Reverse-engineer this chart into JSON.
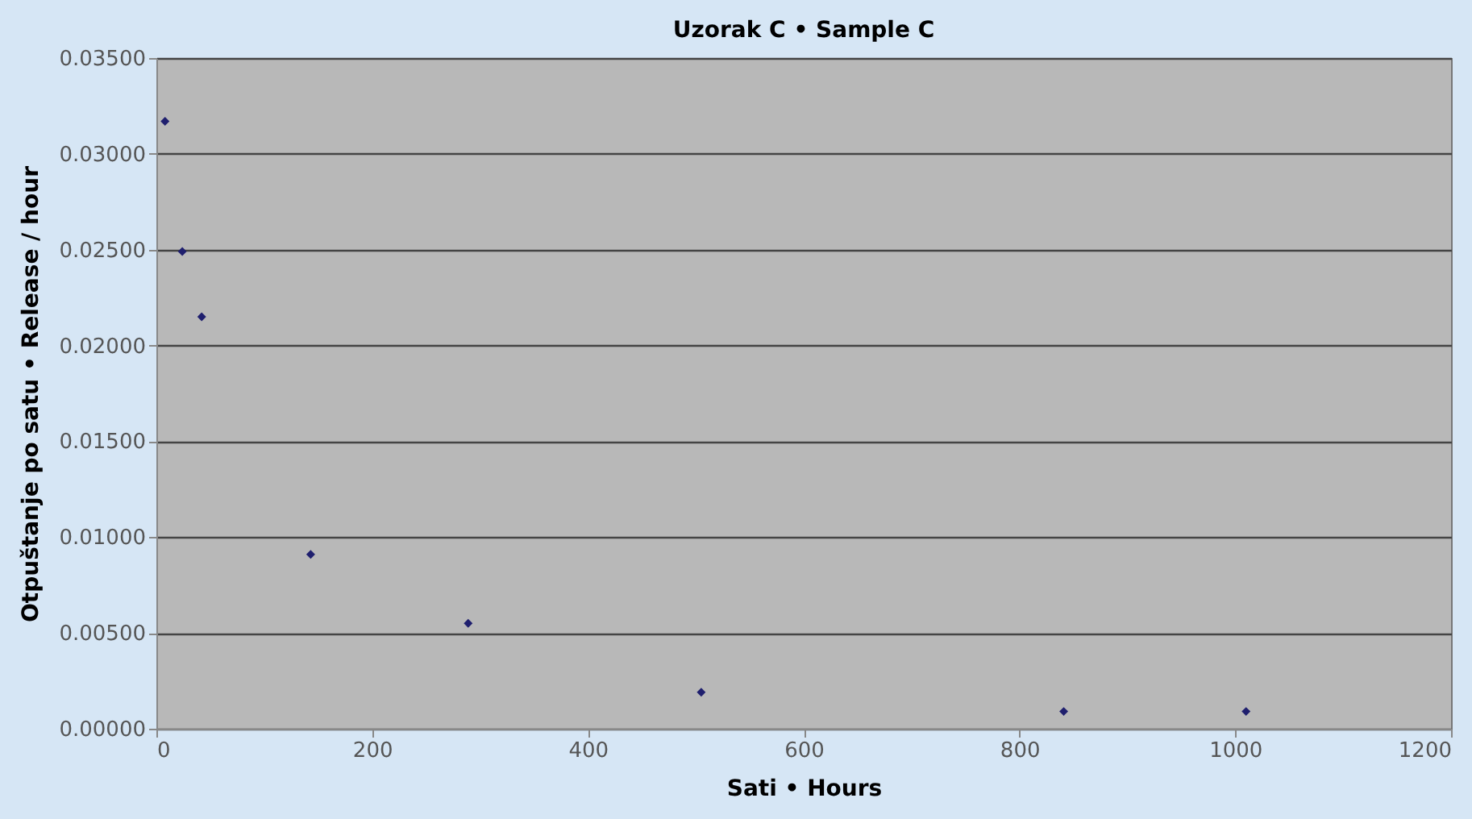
{
  "chart_data": {
    "type": "scatter",
    "title": "Uzorak C • Sample C",
    "xlabel": "Sati • Hours",
    "ylabel": "Otpuštanje po satu • Release / hour",
    "x": [
      8,
      24,
      42,
      143,
      289,
      505,
      841,
      1010
    ],
    "series": [
      {
        "color": "#1f1f6e",
        "values": [
          0.0317,
          0.0249,
          0.0215,
          0.0091,
          0.0055,
          0.0019,
          0.0009,
          0.0009
        ]
      }
    ],
    "xlim": [
      0,
      1200
    ],
    "xticks": [
      0,
      200,
      400,
      600,
      800,
      1000,
      1200
    ],
    "ylim": [
      0,
      0.035
    ],
    "yticks": [
      {
        "value": 0,
        "label": "0.00000"
      },
      {
        "value": 0.005,
        "label": "0.00500"
      },
      {
        "value": 0.01,
        "label": "0.01000"
      },
      {
        "value": 0.015,
        "label": "0.01500"
      },
      {
        "value": 0.02,
        "label": "0.02000"
      },
      {
        "value": 0.025,
        "label": "0.02500"
      },
      {
        "value": 0.03,
        "label": "0.03000"
      },
      {
        "value": 0.035,
        "label": "0.03500"
      }
    ],
    "grid": "y",
    "marker": "diamond",
    "legend": false
  }
}
